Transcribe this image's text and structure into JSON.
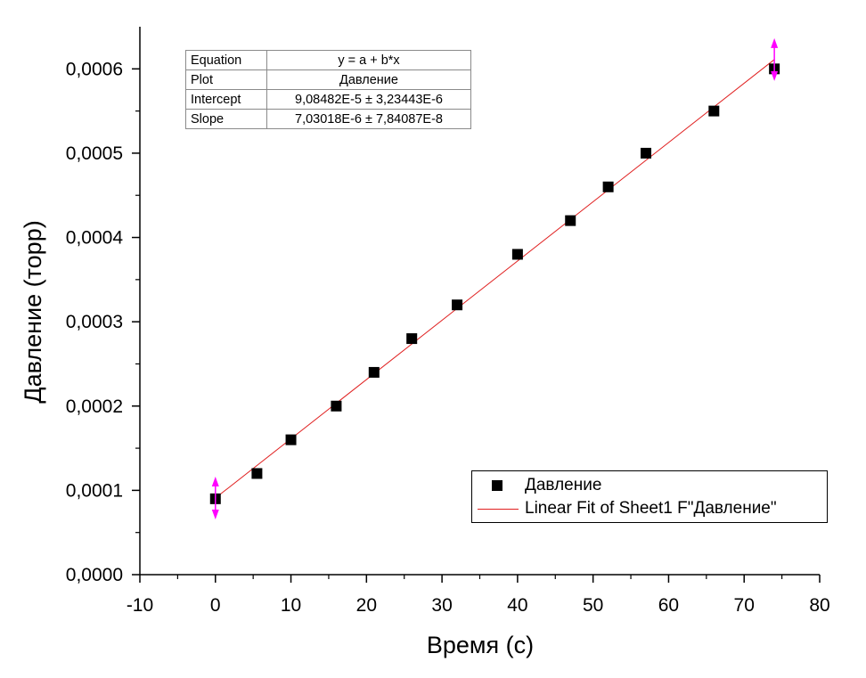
{
  "chart_data": {
    "type": "scatter",
    "xlabel": "Время (с)",
    "ylabel": "Давление (торр)",
    "xlim": [
      -10,
      80
    ],
    "ylim": [
      0,
      0.00065
    ],
    "x_ticks": [
      "-10",
      "0",
      "10",
      "20",
      "30",
      "40",
      "50",
      "60",
      "70",
      "80"
    ],
    "y_ticks": [
      "0,0000",
      "0,0001",
      "0,0002",
      "0,0003",
      "0,0004",
      "0,0005",
      "0,0006"
    ],
    "grid": false,
    "series": [
      {
        "name": "Давление",
        "kind": "points",
        "color": "#000000",
        "x": [
          0,
          5.5,
          10,
          16,
          21,
          26,
          32,
          40,
          47,
          52,
          57,
          66,
          74
        ],
        "y": [
          9e-05,
          0.00012,
          0.00016,
          0.0002,
          0.00024,
          0.00028,
          0.00032,
          0.00038,
          0.00042,
          0.00046,
          0.0005,
          0.00055,
          0.0006
        ]
      },
      {
        "name": "Linear Fit of Sheet1 F\"Давление\"",
        "kind": "line",
        "color": "#e02020",
        "intercept": 9.08482e-05,
        "slope": 7.03018e-06,
        "x_range": [
          0,
          74
        ]
      }
    ],
    "range_markers": {
      "color": "#ff00ff",
      "x": [
        0,
        74
      ]
    },
    "legend_position": "lower-right",
    "fit_table": {
      "rows": [
        {
          "key": "Equation",
          "value": "y = a + b*x"
        },
        {
          "key": "Plot",
          "value": "Давление"
        },
        {
          "key": "Intercept",
          "value": "9,08482E-5 ± 3,23443E-6"
        },
        {
          "key": "Slope",
          "value": "7,03018E-6 ± 7,84087E-8"
        }
      ]
    }
  }
}
